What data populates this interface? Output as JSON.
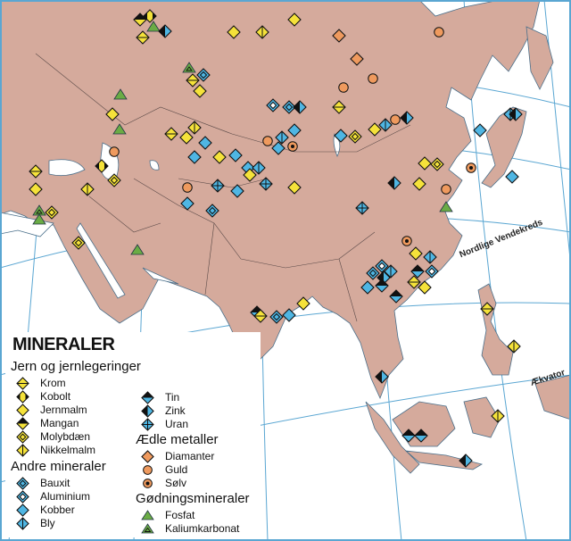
{
  "legend": {
    "title": "MINERALER",
    "sections": [
      {
        "heading": "Jern og jernlegeringer",
        "items": [
          {
            "label": "Krom",
            "symbol": "krom"
          },
          {
            "label": "Kobolt",
            "symbol": "kobolt"
          },
          {
            "label": "Jernmalm",
            "symbol": "jern"
          },
          {
            "label": "Mangan",
            "symbol": "mangan"
          },
          {
            "label": "Molybdæn",
            "symbol": "molyb"
          },
          {
            "label": "Nikkelmalm",
            "symbol": "nikkel"
          }
        ]
      },
      {
        "heading": "Andre mineraler",
        "items": [
          {
            "label": "Bauxit",
            "symbol": "bauxit"
          },
          {
            "label": "Aluminium",
            "symbol": "alu"
          },
          {
            "label": "Kobber",
            "symbol": "kobber"
          },
          {
            "label": "Bly",
            "symbol": "bly"
          },
          {
            "label": "Tin",
            "symbol": "tin"
          },
          {
            "label": "Zink",
            "symbol": "zink"
          },
          {
            "label": "Uran",
            "symbol": "uran"
          }
        ]
      },
      {
        "heading": "Ædle metaller",
        "items": [
          {
            "label": "Diamanter",
            "symbol": "diamant"
          },
          {
            "label": "Guld",
            "symbol": "guld"
          },
          {
            "label": "Sølv",
            "symbol": "solv"
          }
        ]
      },
      {
        "heading": "Gødningsmineraler",
        "items": [
          {
            "label": "Fosfat",
            "symbol": "fosfat"
          },
          {
            "label": "Kaliumkarbonat",
            "symbol": "kalium"
          }
        ]
      }
    ]
  },
  "map_labels": {
    "tropic": "Nordlige Vendekreds",
    "equator": "Ækvator"
  },
  "colors": {
    "land": "#d5aa9c",
    "sea": "#ffffff",
    "graticule": "#5aa6d2",
    "iron_group": "#f5e23a",
    "other_minerals": "#4fb6e3",
    "precious": "#ef9a5e",
    "fertilizer": "#6aac45"
  }
}
